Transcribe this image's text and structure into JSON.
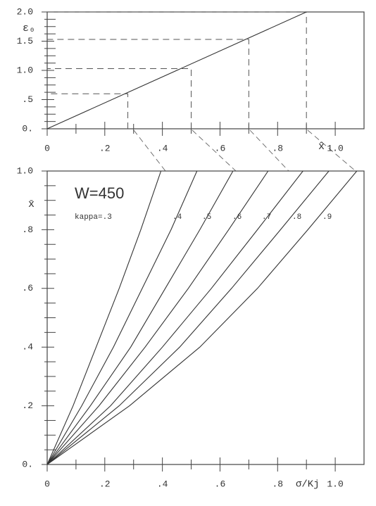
{
  "chart_data": [
    {
      "type": "line",
      "y_label": "ε₀",
      "x_label": "x̂",
      "xlim": [
        0,
        1.1
      ],
      "ylim": [
        0,
        2.0
      ],
      "xticks": [
        0,
        {
          "value": 0.2,
          "label": ".2"
        },
        {
          "value": 0.4,
          "label": ".4"
        },
        {
          "value": 0.6,
          "label": ".6"
        },
        {
          "value": 0.8,
          "label": ".8"
        },
        {
          "value": 1.0,
          "label": "1.0"
        }
      ],
      "yticks": [
        {
          "value": 0,
          "label": "0."
        },
        {
          "value": 0.5,
          "label": ".5"
        },
        {
          "value": 1.0,
          "label": "1.0"
        },
        {
          "value": 1.5,
          "label": "1.5"
        },
        {
          "value": 2.0,
          "label": "2.0"
        }
      ],
      "series": [
        {
          "color": "#333333",
          "x": [
            0,
            0.9
          ],
          "values": [
            0,
            2.0
          ]
        }
      ],
      "guides": {
        "x": [
          0.28,
          0.5,
          0.7,
          0.9
        ],
        "y": [
          0.6,
          1.03,
          1.53,
          2.0
        ]
      }
    },
    {
      "type": "line",
      "y_label": "x̄",
      "x_label": "σ/Kj",
      "annotation": "W=450",
      "xlim": [
        0,
        1.1
      ],
      "ylim": [
        0,
        1.0
      ],
      "xticks": [
        0,
        {
          "value": 0.2,
          "label": ".2"
        },
        {
          "value": 0.4,
          "label": ".4"
        },
        {
          "value": 0.6,
          "label": ".6"
        },
        {
          "value": 0.8,
          "label": ".8"
        },
        {
          "value": 1.0,
          "label": "1.0"
        }
      ],
      "yticks": [
        {
          "value": 0,
          "label": "0."
        },
        {
          "value": 0.2,
          "label": ".2"
        },
        {
          "value": 0.4,
          "label": ".4"
        },
        {
          "value": 0.6,
          "label": ".6"
        },
        {
          "value": 0.8,
          "label": ".8"
        },
        {
          "value": 1.0,
          "label": "1.0"
        }
      ],
      "series": [
        {
          "name": "kappa=.3",
          "color": "#333333",
          "x": [
            0,
            0.09,
            0.17,
            0.25,
            0.325,
            0.395
          ],
          "values": [
            0,
            0.2,
            0.4,
            0.6,
            0.8,
            1.0
          ]
        },
        {
          "name": ".4",
          "color": "#333333",
          "x": [
            0,
            0.12,
            0.23,
            0.33,
            0.43,
            0.52
          ],
          "values": [
            0,
            0.2,
            0.4,
            0.6,
            0.8,
            1.0
          ]
        },
        {
          "name": ".5",
          "color": "#333333",
          "x": [
            0,
            0.15,
            0.29,
            0.41,
            0.53,
            0.645
          ],
          "values": [
            0,
            0.2,
            0.4,
            0.6,
            0.8,
            1.0
          ]
        },
        {
          "name": ".6",
          "color": "#333333",
          "x": [
            0,
            0.18,
            0.34,
            0.49,
            0.63,
            0.767
          ],
          "values": [
            0,
            0.2,
            0.4,
            0.6,
            0.8,
            1.0
          ]
        },
        {
          "name": ".7",
          "color": "#333333",
          "x": [
            0,
            0.22,
            0.4,
            0.57,
            0.73,
            0.888
          ],
          "values": [
            0,
            0.2,
            0.4,
            0.6,
            0.8,
            1.0
          ]
        },
        {
          "name": ".8",
          "color": "#333333",
          "x": [
            0,
            0.25,
            0.46,
            0.64,
            0.81,
            0.978
          ],
          "values": [
            0,
            0.2,
            0.4,
            0.6,
            0.8,
            1.0
          ]
        },
        {
          "name": ".9",
          "color": "#333333",
          "x": [
            0,
            0.286,
            0.53,
            0.73,
            0.905,
            1.075
          ],
          "values": [
            0,
            0.2,
            0.4,
            0.6,
            0.8,
            1.0
          ]
        }
      ]
    }
  ]
}
